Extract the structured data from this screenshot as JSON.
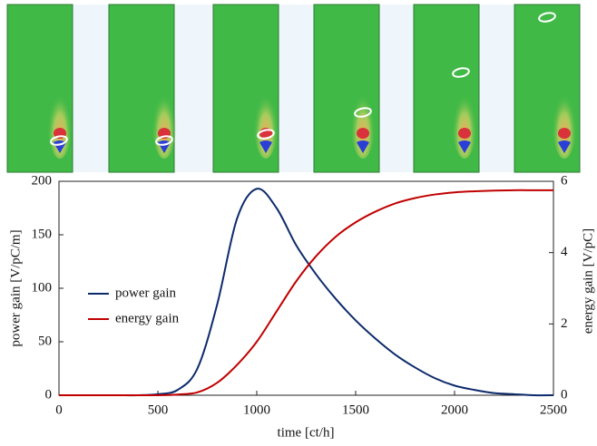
{
  "chart_data": {
    "type": "line",
    "x": [
      0,
      100,
      200,
      300,
      400,
      500,
      600,
      700,
      800,
      900,
      1000,
      1100,
      1200,
      1300,
      1400,
      1500,
      1600,
      1700,
      1800,
      1900,
      2000,
      2100,
      2200,
      2300,
      2400,
      2500
    ],
    "xlabel": "time [ct/h]",
    "ylabel": "power gain [V/pC/m]",
    "y2label": "energy gain [V/pC]",
    "xlim": [
      0,
      2500
    ],
    "xticks": [
      0,
      500,
      1000,
      1500,
      2000,
      2500
    ],
    "ylim": [
      0,
      200
    ],
    "yticks": [
      0,
      50,
      100,
      150,
      200
    ],
    "y2lim": [
      0,
      6
    ],
    "y2ticks": [
      0,
      2,
      4,
      6
    ],
    "legend": "center left",
    "series": [
      {
        "name": "power gain",
        "color": "#0d2a6b",
        "values": [
          0,
          0,
          0,
          0,
          0,
          1,
          5,
          25,
          85,
          165,
          193,
          175,
          140,
          113,
          90,
          70,
          53,
          38,
          26,
          16,
          9,
          5,
          2,
          1,
          0,
          0
        ]
      },
      {
        "name": "energy gain",
        "color": "#c00000",
        "axis": "y2",
        "values": [
          0,
          0,
          0,
          0,
          0,
          0,
          0.02,
          0.08,
          0.35,
          0.85,
          1.5,
          2.35,
          3.2,
          3.9,
          4.45,
          4.85,
          5.15,
          5.38,
          5.53,
          5.63,
          5.69,
          5.72,
          5.74,
          5.75,
          5.75,
          5.75
        ]
      }
    ]
  }
}
